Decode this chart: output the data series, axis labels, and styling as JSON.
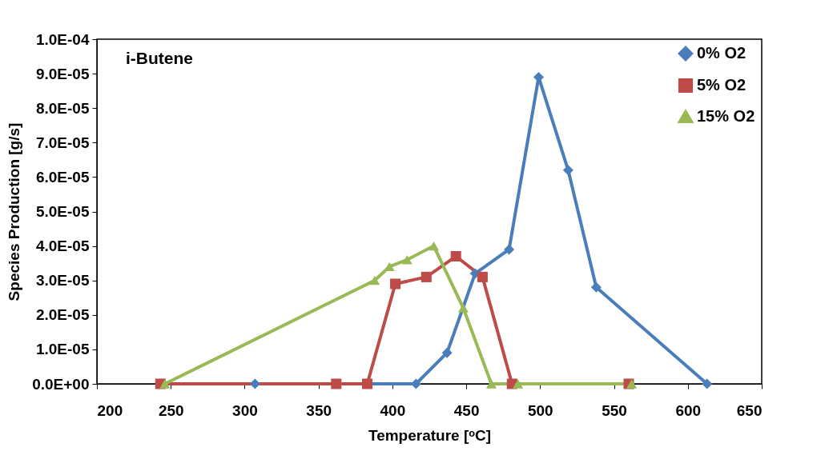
{
  "chart_data": {
    "type": "line",
    "title": "i-Butene",
    "xlabel": "Temperature [ᵒC]",
    "ylabel": "Species Production [g/s]",
    "xlim": [
      200,
      650
    ],
    "xticks": [
      200,
      250,
      300,
      350,
      400,
      450,
      500,
      550,
      600,
      650
    ],
    "ylim": [
      0,
      0.0001
    ],
    "yticks": [
      {
        "value": 0,
        "label": "0.0E+00"
      },
      {
        "value": 1e-05,
        "label": "1.0E-05"
      },
      {
        "value": 2e-05,
        "label": "2.0E-05"
      },
      {
        "value": 3e-05,
        "label": "3.0E-05"
      },
      {
        "value": 4e-05,
        "label": "4.0E-05"
      },
      {
        "value": 5e-05,
        "label": "5.0E-05"
      },
      {
        "value": 6e-05,
        "label": "6.0E-05"
      },
      {
        "value": 7e-05,
        "label": "7.0E-05"
      },
      {
        "value": 8e-05,
        "label": "8.0E-05"
      },
      {
        "value": 9e-05,
        "label": "9.0E-05"
      },
      {
        "value": 0.0001,
        "label": "1.0E-04"
      }
    ],
    "grid": false,
    "legend": "top right",
    "line_style": "solid",
    "series": [
      {
        "name": "0% O2",
        "color": "#4a7ebb",
        "marker": "diamond",
        "x": [
          307,
          416,
          437,
          456,
          479,
          499,
          519,
          538,
          613
        ],
        "values": [
          0,
          0,
          9e-06,
          3.2e-05,
          3.9e-05,
          8.9e-05,
          6.2e-05,
          2.8e-05,
          0
        ]
      },
      {
        "name": "5% O2",
        "color": "#be4b48",
        "marker": "square",
        "x": [
          243,
          362,
          383,
          402,
          423,
          443,
          461,
          481,
          560
        ],
        "values": [
          0,
          0,
          0,
          2.9e-05,
          3.1e-05,
          3.7e-05,
          3.1e-05,
          0,
          0
        ]
      },
      {
        "name": "15% O2",
        "color": "#98b954",
        "marker": "triangle",
        "x": [
          246,
          388,
          398,
          410,
          428,
          448,
          467,
          485,
          562
        ],
        "values": [
          0,
          3e-05,
          3.4e-05,
          3.6e-05,
          4e-05,
          2.2e-05,
          0,
          0,
          0
        ]
      }
    ]
  }
}
